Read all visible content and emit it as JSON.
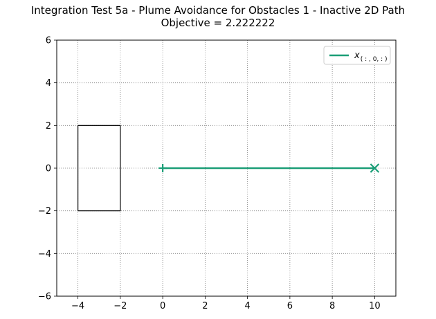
{
  "chart_data": {
    "type": "line",
    "title_lines": [
      "Integration Test 5a - Plume Avoidance for Obstacles 1 - Inactive 2D Path",
      "Objective = 2.222222"
    ],
    "xlabel": "",
    "ylabel": "",
    "xlim": [
      -5,
      11
    ],
    "ylim": [
      -6,
      6
    ],
    "x_ticks": [
      -4,
      -2,
      0,
      2,
      4,
      6,
      8,
      10
    ],
    "y_ticks": [
      -6,
      -4,
      -2,
      0,
      2,
      4,
      6
    ],
    "x_tick_labels": [
      "−4",
      "−2",
      "0",
      "2",
      "4",
      "6",
      "8",
      "10"
    ],
    "y_tick_labels": [
      "−6",
      "−4",
      "−2",
      "0",
      "2",
      "4",
      "6"
    ],
    "grid": true,
    "grid_style": "dotted",
    "legend_placement": "top-right",
    "series": [
      {
        "name_base": "x",
        "name_subscript": "( : , 0, : )",
        "color": "#1b9e77",
        "points": [
          [
            0,
            0
          ],
          [
            10,
            0
          ]
        ],
        "start_marker": "plus",
        "end_marker": "x"
      }
    ],
    "obstacles": [
      {
        "shape": "rectangle",
        "x_min": -4,
        "x_max": -2,
        "y_min": -2,
        "y_max": 2,
        "color": "#000000"
      }
    ]
  }
}
